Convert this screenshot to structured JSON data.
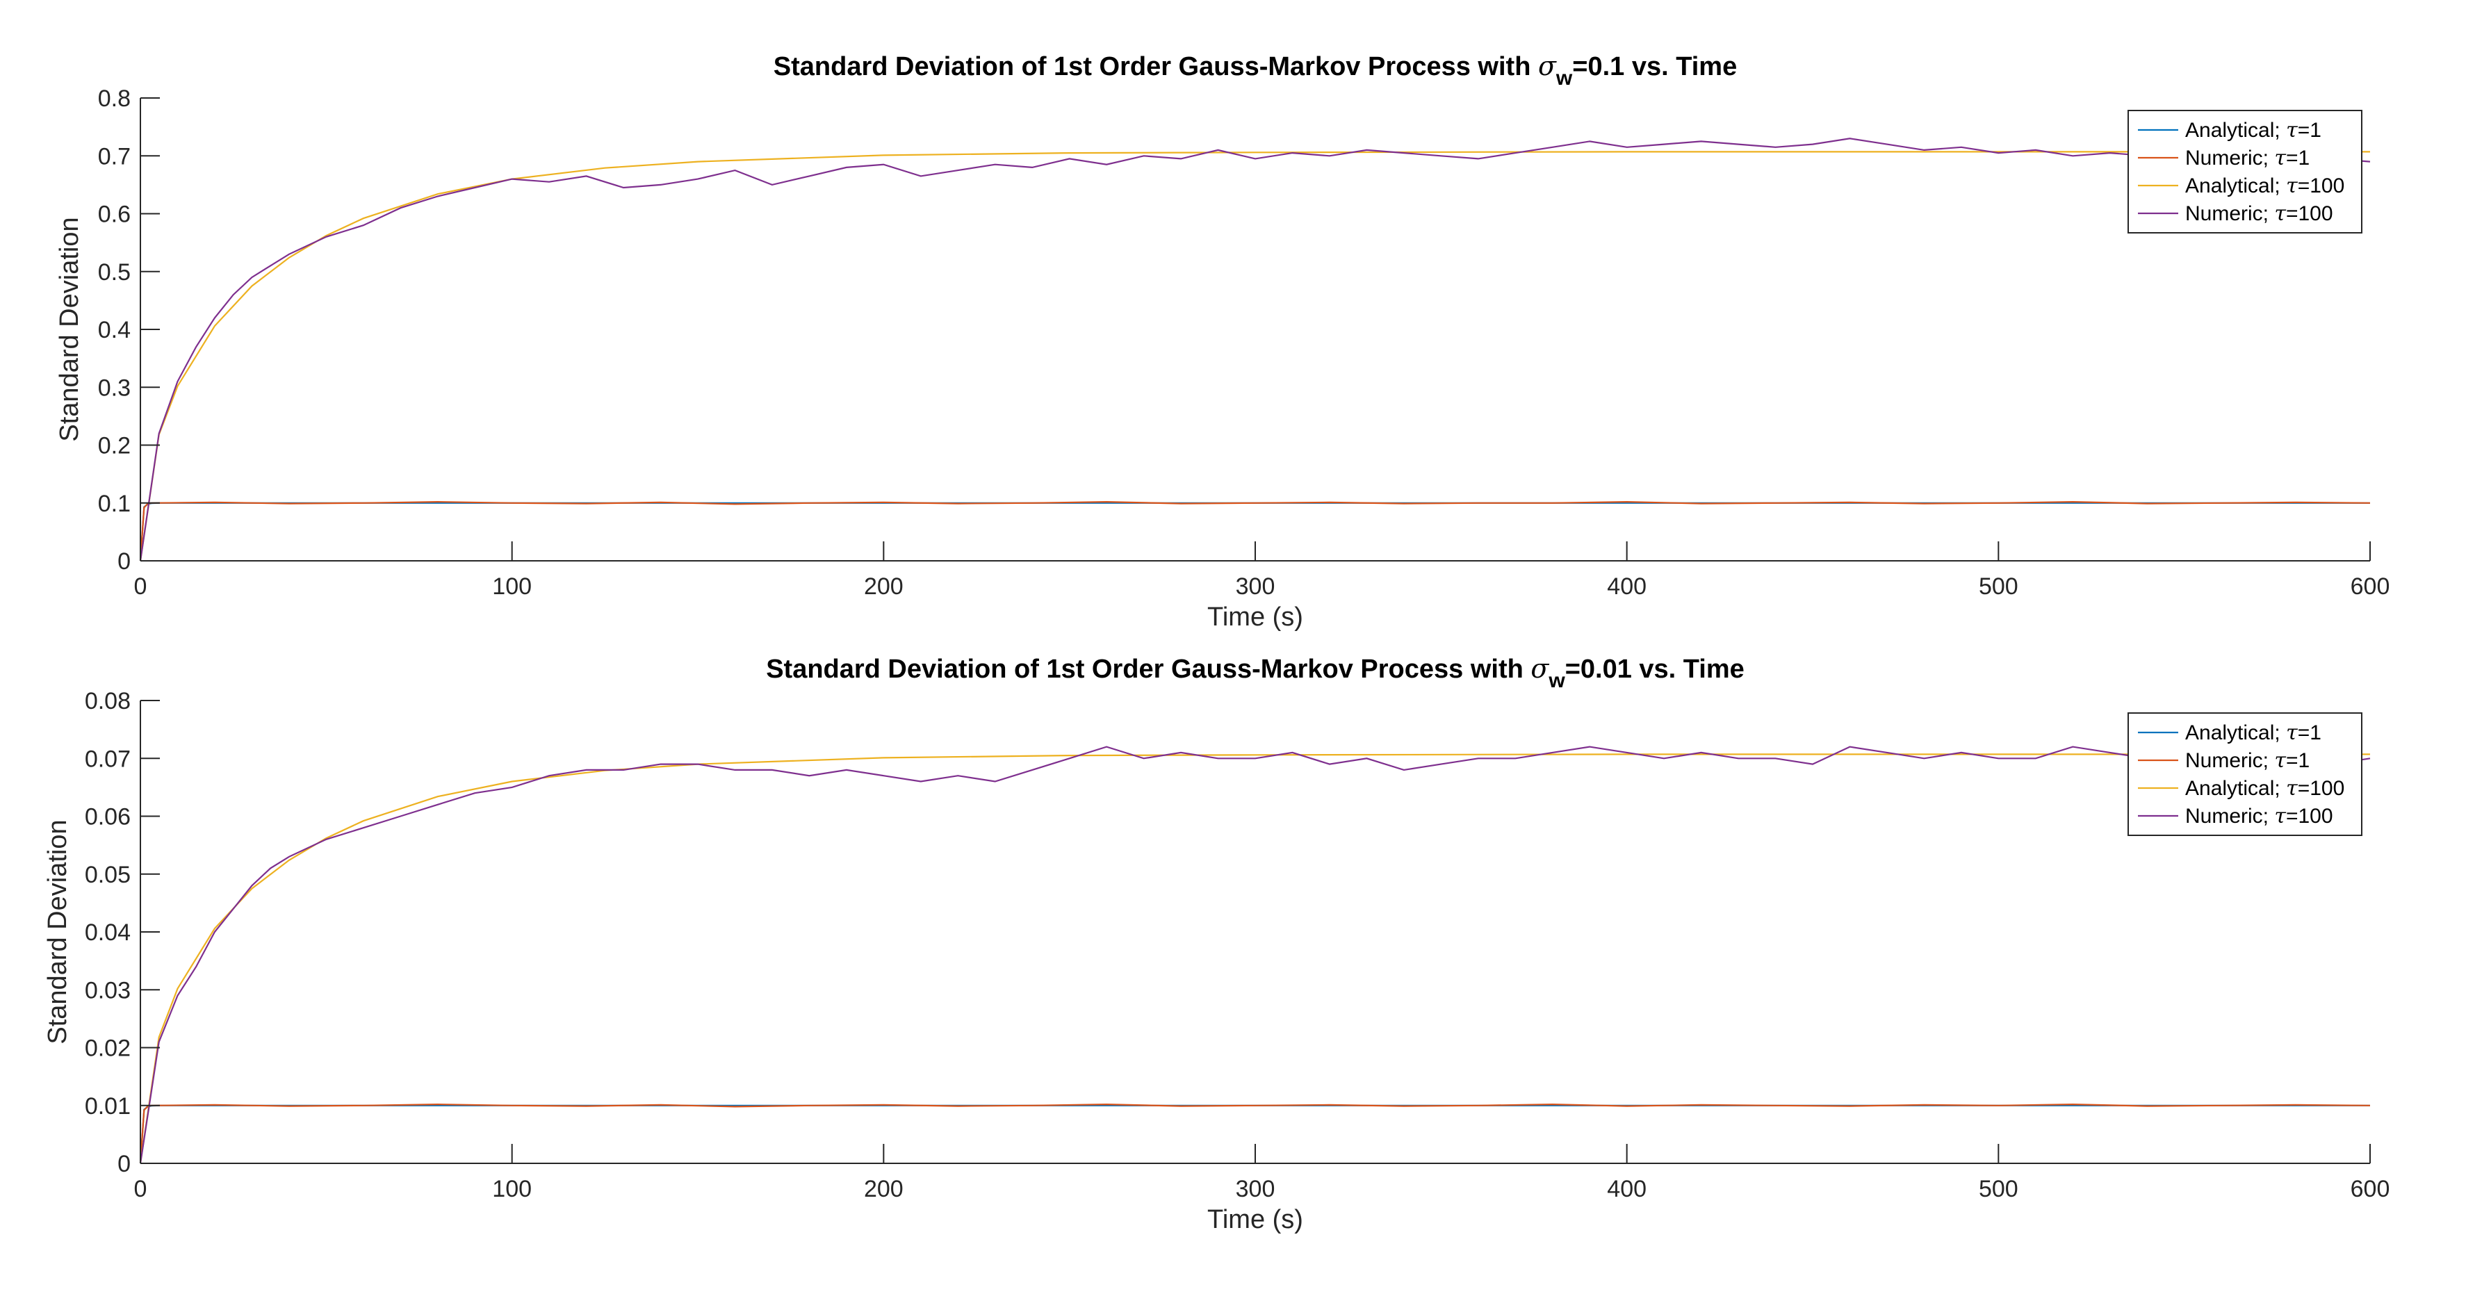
{
  "chart_data": [
    {
      "type": "line",
      "title": {
        "prefix": "Standard Deviation of 1st Order Gauss-Markov Process with ",
        "symbol": "σ",
        "subscript": "w",
        "suffix": "=0.1 vs. Time"
      },
      "xlabel": "Time (s)",
      "ylabel": "Standard Deviation",
      "xlim": [
        0,
        600
      ],
      "ylim": [
        0,
        0.8
      ],
      "xticks": [
        0,
        100,
        200,
        300,
        400,
        500,
        600
      ],
      "yticks": [
        0,
        0.1,
        0.2,
        0.3,
        0.4,
        0.5,
        0.6,
        0.7,
        0.8
      ],
      "ytick_labels": [
        "0",
        "0.1",
        "0.2",
        "0.3",
        "0.4",
        "0.5",
        "0.6",
        "0.7",
        "0.8"
      ],
      "grid": false,
      "legend_position": "top-right",
      "series": [
        {
          "name": "Analytical; τ=1",
          "label_prefix": "Analytical; ",
          "label_symbol": "τ",
          "label_suffix": "=1",
          "color": "#0072BD",
          "x": [
            0,
            1,
            2,
            3,
            5,
            10,
            50,
            100,
            200,
            300,
            400,
            500,
            600
          ],
          "y": [
            0,
            0.093,
            0.098,
            0.0995,
            0.1,
            0.1,
            0.1,
            0.1,
            0.1,
            0.1,
            0.1,
            0.1,
            0.1
          ]
        },
        {
          "name": "Numeric; τ=1",
          "label_prefix": "Numeric; ",
          "label_symbol": "τ",
          "label_suffix": "=1",
          "color": "#D95319",
          "x": [
            0,
            1,
            2,
            3,
            20,
            40,
            60,
            80,
            100,
            120,
            140,
            160,
            180,
            200,
            220,
            240,
            260,
            280,
            300,
            320,
            340,
            360,
            380,
            400,
            420,
            440,
            460,
            480,
            500,
            520,
            540,
            560,
            580,
            600
          ],
          "y": [
            0,
            0.092,
            0.099,
            0.1,
            0.101,
            0.099,
            0.1,
            0.102,
            0.1,
            0.099,
            0.101,
            0.098,
            0.1,
            0.101,
            0.099,
            0.1,
            0.102,
            0.099,
            0.1,
            0.101,
            0.099,
            0.1,
            0.1,
            0.102,
            0.099,
            0.1,
            0.101,
            0.099,
            0.1,
            0.102,
            0.099,
            0.1,
            0.101,
            0.1
          ]
        },
        {
          "name": "Analytical; τ=100",
          "label_prefix": "Analytical; ",
          "label_symbol": "τ",
          "label_suffix": "=100",
          "color": "#EDB120",
          "x": [
            0,
            5,
            10,
            20,
            30,
            40,
            50,
            60,
            80,
            100,
            125,
            150,
            200,
            250,
            300,
            400,
            500,
            600
          ],
          "y": [
            0,
            0.218,
            0.302,
            0.406,
            0.475,
            0.524,
            0.562,
            0.592,
            0.634,
            0.66,
            0.679,
            0.69,
            0.701,
            0.705,
            0.706,
            0.707,
            0.707,
            0.707
          ]
        },
        {
          "name": "Numeric; τ=100",
          "label_prefix": "Numeric; ",
          "label_symbol": "τ",
          "label_suffix": "=100",
          "color": "#7E2F8E",
          "x": [
            0,
            5,
            10,
            15,
            20,
            25,
            30,
            35,
            40,
            50,
            60,
            70,
            80,
            90,
            100,
            110,
            120,
            130,
            140,
            150,
            160,
            170,
            180,
            190,
            200,
            210,
            220,
            230,
            240,
            250,
            260,
            270,
            280,
            290,
            300,
            310,
            320,
            330,
            340,
            350,
            360,
            370,
            380,
            390,
            400,
            410,
            420,
            430,
            440,
            450,
            460,
            470,
            480,
            490,
            500,
            510,
            520,
            530,
            540,
            550,
            560,
            570,
            580,
            590,
            600
          ],
          "y": [
            0,
            0.22,
            0.31,
            0.37,
            0.42,
            0.46,
            0.49,
            0.51,
            0.53,
            0.56,
            0.58,
            0.61,
            0.63,
            0.645,
            0.66,
            0.655,
            0.665,
            0.645,
            0.65,
            0.66,
            0.675,
            0.65,
            0.665,
            0.68,
            0.685,
            0.665,
            0.675,
            0.685,
            0.68,
            0.695,
            0.685,
            0.7,
            0.695,
            0.71,
            0.695,
            0.705,
            0.7,
            0.71,
            0.705,
            0.7,
            0.695,
            0.705,
            0.715,
            0.725,
            0.715,
            0.72,
            0.725,
            0.72,
            0.715,
            0.72,
            0.73,
            0.72,
            0.71,
            0.715,
            0.705,
            0.71,
            0.7,
            0.705,
            0.7,
            0.71,
            0.7,
            0.705,
            0.7,
            0.695,
            0.69
          ]
        }
      ]
    },
    {
      "type": "line",
      "title": {
        "prefix": "Standard Deviation of 1st Order Gauss-Markov Process with ",
        "symbol": "σ",
        "subscript": "w",
        "suffix": "=0.01 vs. Time"
      },
      "xlabel": "Time (s)",
      "ylabel": "Standard Deviation",
      "xlim": [
        0,
        600
      ],
      "ylim": [
        0,
        0.08
      ],
      "xticks": [
        0,
        100,
        200,
        300,
        400,
        500,
        600
      ],
      "yticks": [
        0,
        0.01,
        0.02,
        0.03,
        0.04,
        0.05,
        0.06,
        0.07,
        0.08
      ],
      "ytick_labels": [
        "0",
        "0.01",
        "0.02",
        "0.03",
        "0.04",
        "0.05",
        "0.06",
        "0.07",
        "0.08"
      ],
      "grid": false,
      "legend_position": "top-right",
      "series": [
        {
          "name": "Analytical; τ=1",
          "label_prefix": "Analytical; ",
          "label_symbol": "τ",
          "label_suffix": "=1",
          "color": "#0072BD",
          "x": [
            0,
            1,
            2,
            3,
            5,
            10,
            50,
            100,
            200,
            300,
            400,
            500,
            600
          ],
          "y": [
            0,
            0.0093,
            0.0098,
            0.00995,
            0.01,
            0.01,
            0.01,
            0.01,
            0.01,
            0.01,
            0.01,
            0.01,
            0.01
          ]
        },
        {
          "name": "Numeric; τ=1",
          "label_prefix": "Numeric; ",
          "label_symbol": "τ",
          "label_suffix": "=1",
          "color": "#D95319",
          "x": [
            0,
            1,
            2,
            3,
            20,
            40,
            60,
            80,
            100,
            120,
            140,
            160,
            180,
            200,
            220,
            240,
            260,
            280,
            300,
            320,
            340,
            360,
            380,
            400,
            420,
            440,
            460,
            480,
            500,
            520,
            540,
            560,
            580,
            600
          ],
          "y": [
            0,
            0.0092,
            0.0099,
            0.01,
            0.0101,
            0.0099,
            0.01,
            0.0102,
            0.01,
            0.0099,
            0.0101,
            0.0098,
            0.01,
            0.0101,
            0.0099,
            0.01,
            0.0102,
            0.0099,
            0.01,
            0.0101,
            0.0099,
            0.01,
            0.0102,
            0.0099,
            0.0101,
            0.01,
            0.0099,
            0.0101,
            0.01,
            0.0102,
            0.0099,
            0.01,
            0.0101,
            0.01
          ]
        },
        {
          "name": "Analytical; τ=100",
          "label_prefix": "Analytical; ",
          "label_symbol": "τ",
          "label_suffix": "=100",
          "color": "#EDB120",
          "x": [
            0,
            5,
            10,
            20,
            30,
            40,
            50,
            60,
            80,
            100,
            125,
            150,
            200,
            250,
            300,
            400,
            500,
            600
          ],
          "y": [
            0,
            0.0218,
            0.0302,
            0.0406,
            0.0475,
            0.0524,
            0.0562,
            0.0592,
            0.0634,
            0.066,
            0.0679,
            0.069,
            0.0701,
            0.0705,
            0.0706,
            0.0707,
            0.0707,
            0.0707
          ]
        },
        {
          "name": "Numeric; τ=100",
          "label_prefix": "Numeric; ",
          "label_symbol": "τ",
          "label_suffix": "=100",
          "color": "#7E2F8E",
          "x": [
            0,
            5,
            10,
            15,
            20,
            25,
            30,
            35,
            40,
            50,
            60,
            70,
            80,
            90,
            100,
            110,
            120,
            130,
            140,
            150,
            160,
            170,
            180,
            190,
            200,
            210,
            220,
            230,
            240,
            250,
            260,
            270,
            280,
            290,
            300,
            310,
            320,
            330,
            340,
            350,
            360,
            370,
            380,
            390,
            400,
            410,
            420,
            430,
            440,
            450,
            460,
            470,
            480,
            490,
            500,
            510,
            520,
            530,
            540,
            550,
            560,
            570,
            580,
            590,
            600
          ],
          "y": [
            0,
            0.021,
            0.029,
            0.034,
            0.04,
            0.044,
            0.048,
            0.051,
            0.053,
            0.056,
            0.058,
            0.06,
            0.062,
            0.064,
            0.065,
            0.067,
            0.068,
            0.068,
            0.069,
            0.069,
            0.068,
            0.068,
            0.067,
            0.068,
            0.067,
            0.066,
            0.067,
            0.066,
            0.068,
            0.07,
            0.072,
            0.07,
            0.071,
            0.07,
            0.07,
            0.071,
            0.069,
            0.07,
            0.068,
            0.069,
            0.07,
            0.07,
            0.071,
            0.072,
            0.071,
            0.07,
            0.071,
            0.07,
            0.07,
            0.069,
            0.072,
            0.071,
            0.07,
            0.071,
            0.07,
            0.07,
            0.072,
            0.071,
            0.07,
            0.071,
            0.07,
            0.07,
            0.071,
            0.069,
            0.07
          ]
        }
      ]
    }
  ]
}
